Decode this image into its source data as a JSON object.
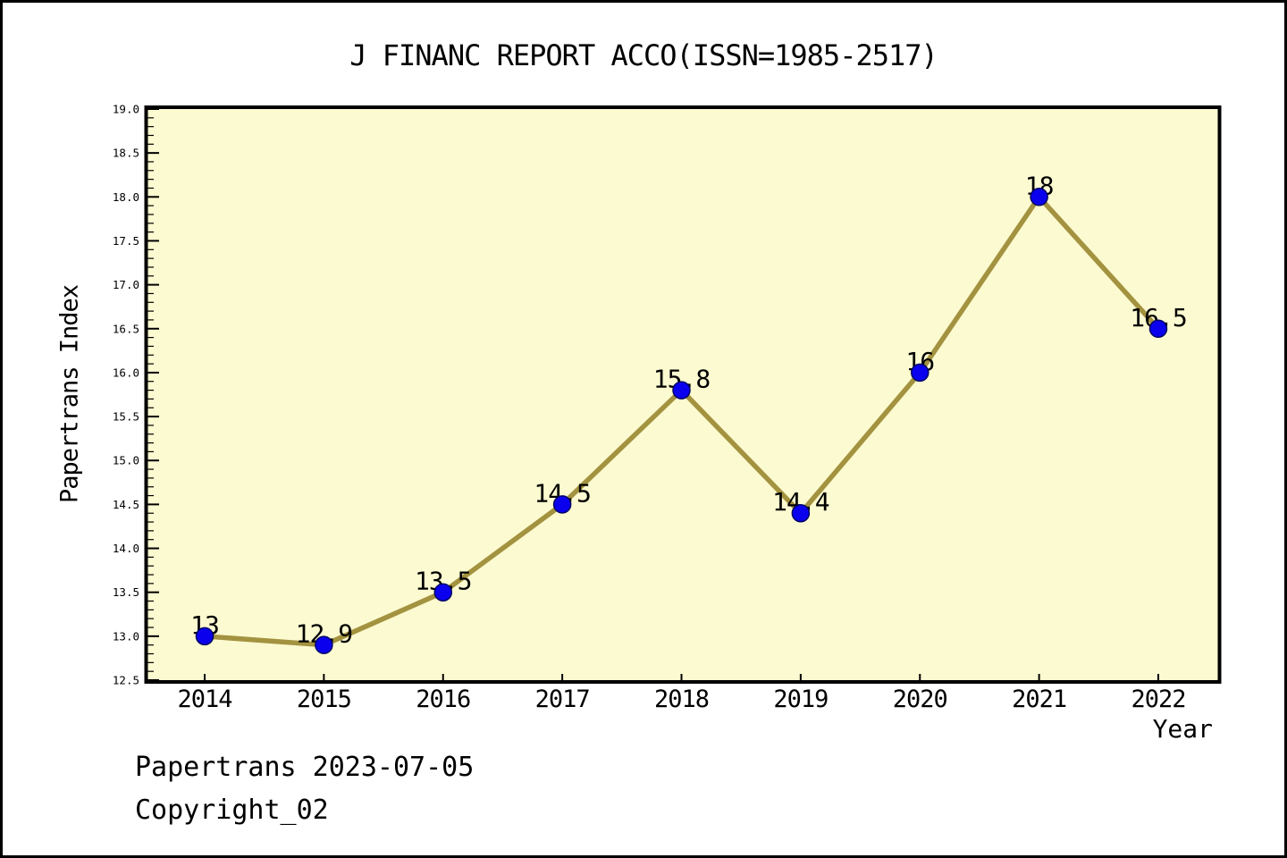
{
  "title": "J FINANC REPORT ACCO(ISSN=1985-2517)",
  "footer": {
    "line1": "Papertrans 2023-07-05",
    "line2": "Copyright_02"
  },
  "chart_data": {
    "type": "line",
    "title": "J FINANC REPORT ACCO(ISSN=1985-2517)",
    "xlabel": "Year",
    "ylabel": "Papertrans Index",
    "categories": [
      "2014",
      "2015",
      "2016",
      "2017",
      "2018",
      "2019",
      "2020",
      "2021",
      "2022"
    ],
    "values": [
      13,
      12.9,
      13.5,
      14.5,
      15.8,
      14.4,
      16,
      18,
      16.5
    ],
    "point_labels": [
      "13",
      "12.9",
      "13.5",
      "14.5",
      "15.8",
      "14.4",
      "16",
      "18",
      "16.5"
    ],
    "ylim": [
      12.5,
      19.0
    ],
    "y_major_tick_step": 0.5,
    "y_minor_tick_step": 0.1,
    "grid": false,
    "legend": "none",
    "colors": {
      "plot_background": "#FCFAD0",
      "figure_background": "#FFFFFF",
      "line": "#A3923F",
      "marker": "#0B00EE",
      "marker_edge": "#000066",
      "frame": "#000000",
      "text": "#000000"
    }
  }
}
